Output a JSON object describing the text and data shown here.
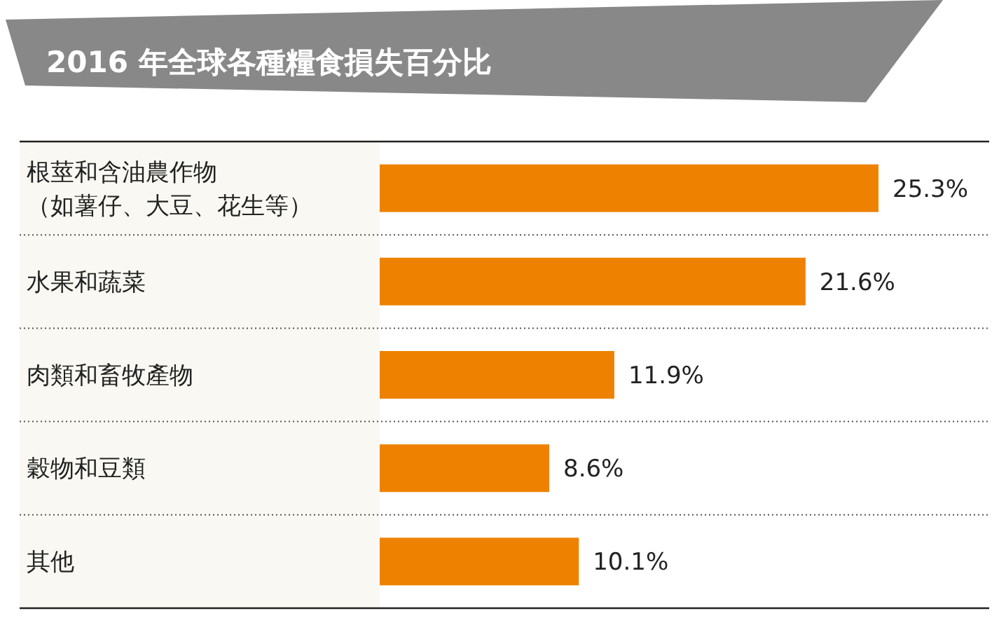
{
  "chart_data": {
    "type": "bar",
    "orientation": "horizontal",
    "title": "2016 年全球各種糧食損失百分比",
    "categories": [
      "根莖和含油農作物（如薯仔、大豆、花生等）",
      "水果和蔬菜",
      "肉類和畜牧產物",
      "穀物和豆類",
      "其他"
    ],
    "values": [
      25.3,
      21.6,
      11.9,
      8.6,
      10.1
    ],
    "value_labels": [
      "25.3%",
      "21.6%",
      "11.9%",
      "8.6%",
      "10.1%"
    ],
    "color": "#ee8200"
  }
}
